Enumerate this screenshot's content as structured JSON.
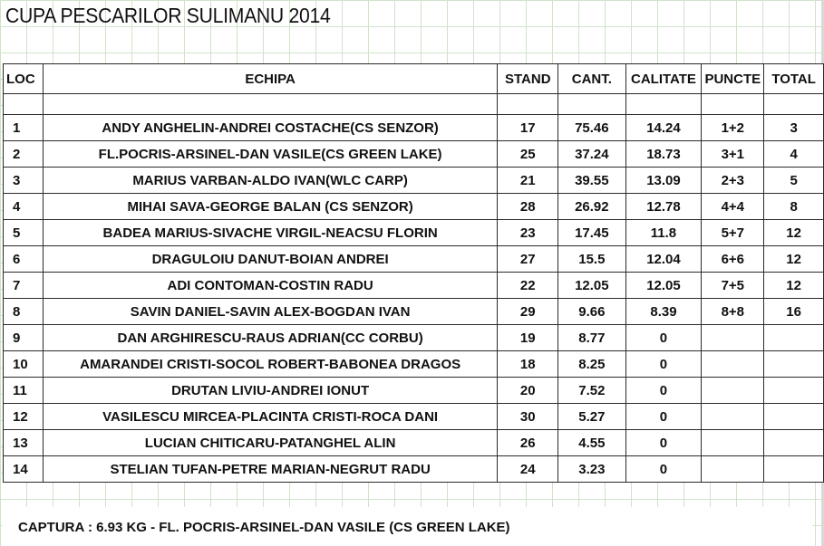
{
  "title": "CUPA PESCARILOR SULIMANU 2014",
  "headers": {
    "loc": "LOC",
    "team": "ECHIPA",
    "stand": "STAND",
    "cant": "CANT.",
    "calitate": "CALITATE",
    "puncte": "PUNCTE",
    "total": "TOTAL"
  },
  "rows": [
    {
      "loc": "1",
      "team": "ANDY ANGHELIN-ANDREI COSTACHE(CS SENZOR)",
      "stand": "17",
      "cant": "75.46",
      "calitate": "14.24",
      "puncte": "1+2",
      "total": "3"
    },
    {
      "loc": "2",
      "team": "FL.POCRIS-ARSINEL-DAN VASILE(CS GREEN LAKE)",
      "stand": "25",
      "cant": "37.24",
      "calitate": "18.73",
      "puncte": "3+1",
      "total": "4"
    },
    {
      "loc": "3",
      "team": "MARIUS VARBAN-ALDO IVAN(WLC CARP)",
      "stand": "21",
      "cant": "39.55",
      "calitate": "13.09",
      "puncte": "2+3",
      "total": "5"
    },
    {
      "loc": "4",
      "team": "MIHAI SAVA-GEORGE BALAN (CS SENZOR)",
      "stand": "28",
      "cant": "26.92",
      "calitate": "12.78",
      "puncte": "4+4",
      "total": "8"
    },
    {
      "loc": "5",
      "team": "BADEA MARIUS-SIVACHE VIRGIL-NEACSU FLORIN",
      "stand": "23",
      "cant": "17.45",
      "calitate": "11.8",
      "puncte": "5+7",
      "total": "12"
    },
    {
      "loc": "6",
      "team": "DRAGULOIU DANUT-BOIAN ANDREI",
      "stand": "27",
      "cant": "15.5",
      "calitate": "12.04",
      "puncte": "6+6",
      "total": "12"
    },
    {
      "loc": "7",
      "team": "ADI CONTOMAN-COSTIN RADU",
      "stand": "22",
      "cant": "12.05",
      "calitate": "12.05",
      "puncte": "7+5",
      "total": "12"
    },
    {
      "loc": "8",
      "team": "SAVIN DANIEL-SAVIN ALEX-BOGDAN IVAN",
      "stand": "29",
      "cant": "9.66",
      "calitate": "8.39",
      "puncte": "8+8",
      "total": "16"
    },
    {
      "loc": "9",
      "team": "DAN ARGHIRESCU-RAUS ADRIAN(CC CORBU)",
      "stand": "19",
      "cant": "8.77",
      "calitate": "0",
      "puncte": "",
      "total": ""
    },
    {
      "loc": "10",
      "team": "AMARANDEI CRISTI-SOCOL ROBERT-BABONEA DRAGOS",
      "stand": "18",
      "cant": "8.25",
      "calitate": "0",
      "puncte": "",
      "total": ""
    },
    {
      "loc": "11",
      "team": "DRUTAN LIVIU-ANDREI IONUT",
      "stand": "20",
      "cant": "7.52",
      "calitate": "0",
      "puncte": "",
      "total": ""
    },
    {
      "loc": "12",
      "team": "VASILESCU MIRCEA-PLACINTA CRISTI-ROCA DANI",
      "stand": "30",
      "cant": "5.27",
      "calitate": "0",
      "puncte": "",
      "total": ""
    },
    {
      "loc": "13",
      "team": "LUCIAN CHITICARU-PATANGHEL ALIN",
      "stand": "26",
      "cant": "4.55",
      "calitate": "0",
      "puncte": "",
      "total": ""
    },
    {
      "loc": "14",
      "team": "STELIAN TUFAN-PETRE MARIAN-NEGRUT RADU",
      "stand": "24",
      "cant": "3.23",
      "calitate": "0",
      "puncte": "",
      "total": ""
    }
  ],
  "footer": "CAPTURA :  6.93 KG - FL. POCRIS-ARSINEL-DAN VASILE (CS GREEN LAKE)",
  "colors": {
    "gridline": "#cfe4c9",
    "border": "#2a2a2a",
    "text": "#111111"
  }
}
